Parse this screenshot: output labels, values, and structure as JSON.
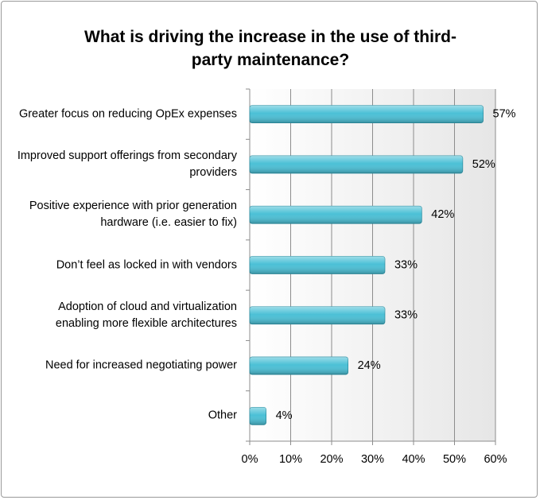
{
  "chart_data": {
    "type": "bar",
    "orientation": "horizontal",
    "title": "What is driving the increase in the use of third-party maintenance?",
    "categories": [
      "Greater focus on reducing OpEx expenses",
      "Improved support offerings from secondary providers",
      "Positive experience with prior generation hardware (i.e. easier to fix)",
      "Don’t feel as locked in with vendors",
      "Adoption of cloud and virtualization enabling more flexible architectures",
      "Need for increased negotiating power",
      "Other"
    ],
    "values": [
      57,
      52,
      42,
      33,
      33,
      24,
      4
    ],
    "value_labels": [
      "57%",
      "52%",
      "42%",
      "33%",
      "33%",
      "24%",
      "4%"
    ],
    "color": "#4bc0d6",
    "xlim": [
      0,
      60
    ],
    "xticks": [
      {
        "value": 0,
        "label": "0%"
      },
      {
        "value": 10,
        "label": "10%"
      },
      {
        "value": 20,
        "label": "20%"
      },
      {
        "value": 30,
        "label": "30%"
      },
      {
        "value": 40,
        "label": "40%"
      },
      {
        "value": 50,
        "label": "50%"
      },
      {
        "value": 60,
        "label": "60%"
      }
    ],
    "grid": true
  }
}
